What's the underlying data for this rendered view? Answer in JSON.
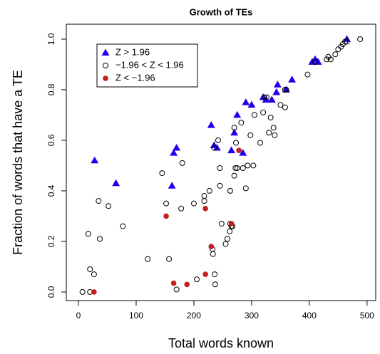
{
  "chart_data": {
    "type": "scatter",
    "title": "Growth of TEs",
    "x_label": "Total words known",
    "y_label": "Fraction of words that have a TE",
    "xlim": [
      -21,
      515
    ],
    "ylim": [
      -0.034,
      1.059
    ],
    "xticks": [
      0,
      100,
      200,
      300,
      400,
      500
    ],
    "yticks": [
      {
        "value": 0,
        "label": "0.0"
      },
      0.2,
      0.4,
      0.6,
      0.8,
      {
        "value": 1,
        "label": "1.0"
      }
    ],
    "legend": "topleft",
    "series": [
      {
        "name": "Z > 1.96",
        "color": "#2200ee",
        "marker": "triangle",
        "x": [
          28,
          65,
          162,
          165,
          170,
          230,
          235,
          240,
          265,
          270,
          275,
          285,
          290,
          300,
          320,
          325,
          335,
          343,
          345,
          360,
          370,
          405,
          410,
          415,
          465
        ],
        "values": [
          0.52,
          0.43,
          0.42,
          0.55,
          0.57,
          0.66,
          0.58,
          0.57,
          0.56,
          0.63,
          0.7,
          0.55,
          0.75,
          0.74,
          0.77,
          0.76,
          0.76,
          0.79,
          0.82,
          0.8,
          0.84,
          0.91,
          0.92,
          0.91,
          1.0
        ]
      },
      {
        "name": "−1.96 < Z < 1.96",
        "color": "#000000",
        "marker": "circle-open",
        "x": [
          7,
          20,
          20,
          27,
          17,
          35,
          37,
          52,
          77,
          120,
          145,
          152,
          157,
          170,
          178,
          180,
          200,
          205,
          218,
          218,
          227,
          232,
          235,
          233,
          236,
          237,
          242,
          245,
          245,
          248,
          255,
          258,
          262,
          263,
          265,
          263,
          267,
          270,
          270,
          272,
          273,
          275,
          282,
          285,
          290,
          293,
          298,
          303,
          305,
          315,
          320,
          322,
          326,
          330,
          333,
          338,
          340,
          350,
          358,
          358,
          360,
          397,
          410,
          430,
          433,
          437,
          445,
          450,
          455,
          458,
          462,
          465,
          488
        ],
        "values": [
          0.0,
          0.0,
          0.09,
          0.07,
          0.23,
          0.36,
          0.21,
          0.34,
          0.26,
          0.13,
          0.47,
          0.35,
          0.13,
          0.01,
          0.33,
          0.51,
          0.35,
          0.05,
          0.38,
          0.36,
          0.4,
          0.17,
          0.57,
          0.15,
          0.07,
          0.03,
          0.6,
          0.49,
          0.42,
          0.27,
          0.19,
          0.21,
          0.24,
          0.27,
          0.26,
          0.4,
          0.26,
          0.46,
          0.65,
          0.49,
          0.59,
          0.49,
          0.67,
          0.49,
          0.41,
          0.5,
          0.62,
          0.5,
          0.7,
          0.59,
          0.71,
          0.77,
          0.77,
          0.63,
          0.69,
          0.65,
          0.62,
          0.74,
          0.73,
          0.8,
          0.8,
          0.86,
          0.91,
          0.92,
          0.93,
          0.92,
          0.94,
          0.96,
          0.97,
          0.98,
          0.99,
          0.99,
          1.0
        ]
      },
      {
        "name": "Z < −1.96",
        "color": "#c0201e",
        "marker": "circle",
        "x": [
          27,
          152,
          165,
          188,
          220,
          220,
          230,
          265,
          278
        ],
        "values": [
          0.0,
          0.3,
          0.035,
          0.03,
          0.07,
          0.33,
          0.18,
          0.27,
          0.56
        ]
      }
    ]
  }
}
